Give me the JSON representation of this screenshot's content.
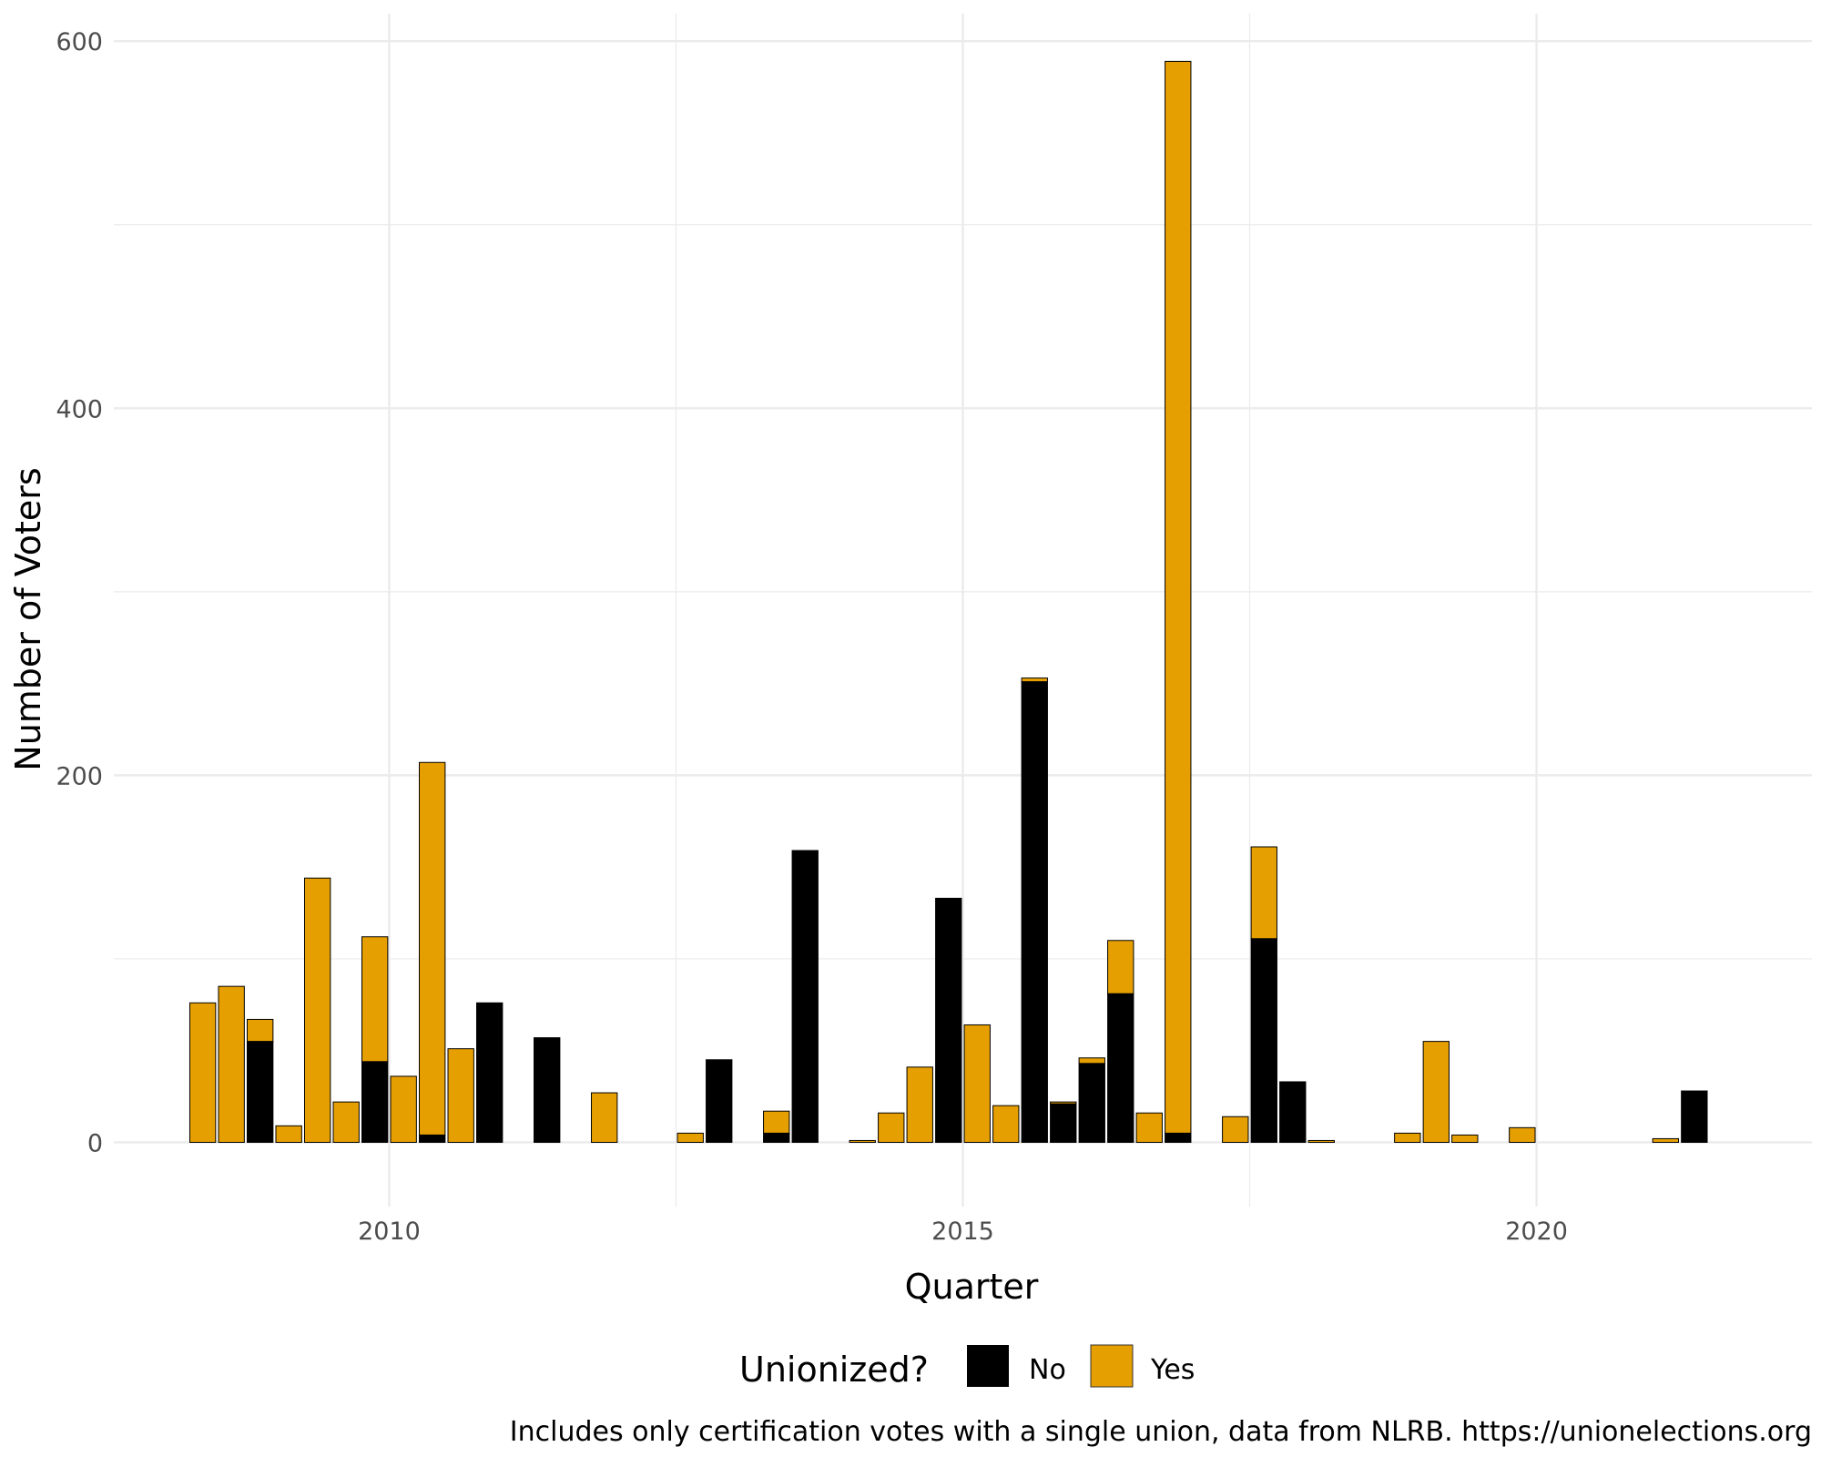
{
  "chart_data": {
    "type": "bar",
    "stacked": true,
    "xlabel": "Quarter",
    "ylabel": "Number of Voters",
    "x_ticks": [
      2010,
      2015,
      2020
    ],
    "y_ticks": [
      0,
      200,
      400,
      600
    ],
    "xlim": [
      2007.6,
      2022.4
    ],
    "ylim": [
      -35,
      615
    ],
    "grid": true,
    "legend": {
      "title": "Unionized?",
      "placement": "bottom"
    },
    "caption": "Includes only certification votes with a single union, data from NLRB. https://unionelections.org",
    "series": [
      {
        "name": "No",
        "color": "#000000"
      },
      {
        "name": "Yes",
        "color": "#E69F00"
      }
    ],
    "bars": [
      {
        "x": 2008.375,
        "no": 0,
        "yes": 76
      },
      {
        "x": 2008.625,
        "no": 0,
        "yes": 85
      },
      {
        "x": 2008.875,
        "no": 55,
        "yes": 12
      },
      {
        "x": 2009.125,
        "no": 0,
        "yes": 9
      },
      {
        "x": 2009.375,
        "no": 0,
        "yes": 144
      },
      {
        "x": 2009.625,
        "no": 0,
        "yes": 22
      },
      {
        "x": 2009.875,
        "no": 44,
        "yes": 68
      },
      {
        "x": 2010.125,
        "no": 0,
        "yes": 36
      },
      {
        "x": 2010.375,
        "no": 4,
        "yes": 203
      },
      {
        "x": 2010.625,
        "no": 0,
        "yes": 51
      },
      {
        "x": 2010.875,
        "no": 76,
        "yes": 0
      },
      {
        "x": 2011.375,
        "no": 57,
        "yes": 0
      },
      {
        "x": 2011.875,
        "no": 0,
        "yes": 27
      },
      {
        "x": 2012.625,
        "no": 0,
        "yes": 5
      },
      {
        "x": 2012.875,
        "no": 45,
        "yes": 0
      },
      {
        "x": 2013.375,
        "no": 5,
        "yes": 12
      },
      {
        "x": 2013.625,
        "no": 159,
        "yes": 0
      },
      {
        "x": 2014.125,
        "no": 0,
        "yes": 1
      },
      {
        "x": 2014.375,
        "no": 0,
        "yes": 16
      },
      {
        "x": 2014.625,
        "no": 0,
        "yes": 41
      },
      {
        "x": 2014.875,
        "no": 133,
        "yes": 0
      },
      {
        "x": 2015.125,
        "no": 0,
        "yes": 64
      },
      {
        "x": 2015.375,
        "no": 0,
        "yes": 20
      },
      {
        "x": 2015.625,
        "no": 251,
        "yes": 2
      },
      {
        "x": 2015.875,
        "no": 21,
        "yes": 1
      },
      {
        "x": 2016.125,
        "no": 43,
        "yes": 3
      },
      {
        "x": 2016.375,
        "no": 81,
        "yes": 29
      },
      {
        "x": 2016.625,
        "no": 0,
        "yes": 16
      },
      {
        "x": 2016.875,
        "no": 5,
        "yes": 584
      },
      {
        "x": 2017.375,
        "no": 0,
        "yes": 14
      },
      {
        "x": 2017.625,
        "no": 111,
        "yes": 50
      },
      {
        "x": 2017.875,
        "no": 33,
        "yes": 0
      },
      {
        "x": 2018.125,
        "no": 0,
        "yes": 1
      },
      {
        "x": 2018.875,
        "no": 0,
        "yes": 5
      },
      {
        "x": 2019.125,
        "no": 0,
        "yes": 55
      },
      {
        "x": 2019.375,
        "no": 0,
        "yes": 4
      },
      {
        "x": 2019.875,
        "no": 0,
        "yes": 8
      },
      {
        "x": 2021.125,
        "no": 0,
        "yes": 2
      },
      {
        "x": 2021.375,
        "no": 28,
        "yes": 0
      }
    ]
  }
}
